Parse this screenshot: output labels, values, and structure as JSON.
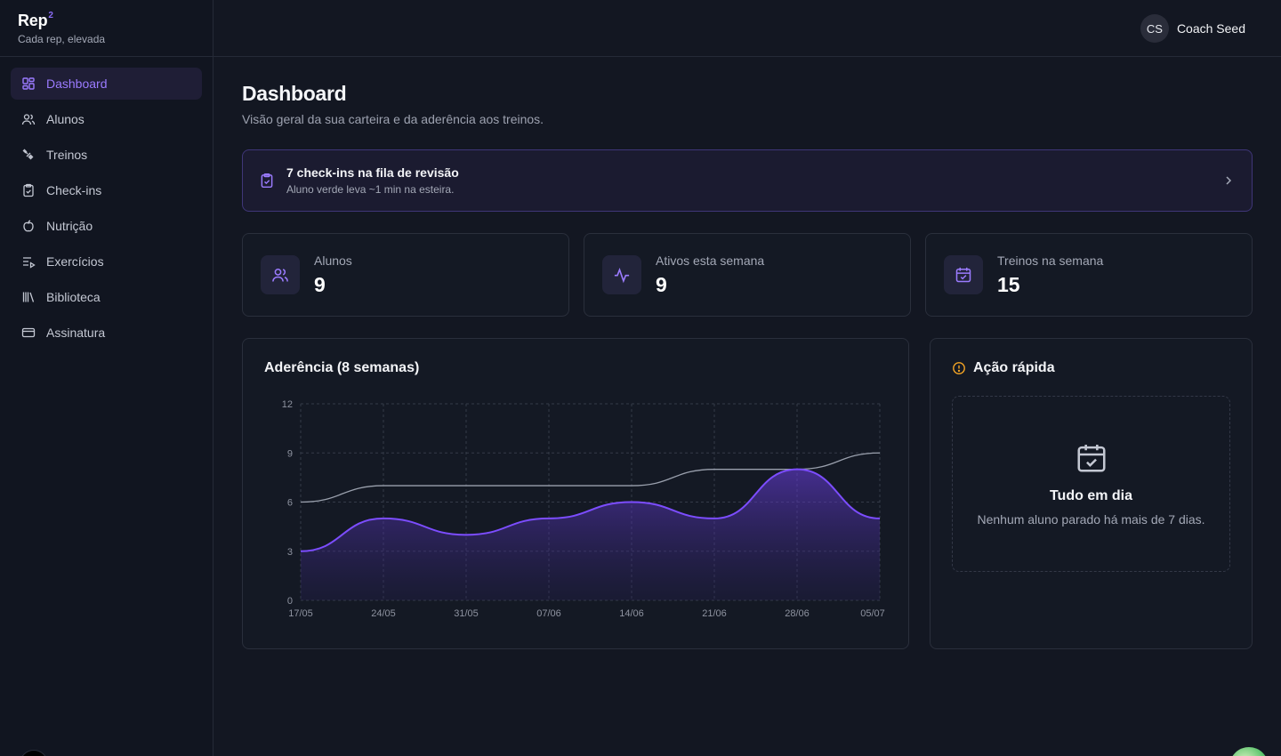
{
  "brand": {
    "name": "Rep",
    "superscript": "2",
    "tagline": "Cada rep, elevada"
  },
  "sidebar": {
    "items": [
      {
        "label": "Dashboard",
        "icon": "dashboard-icon",
        "active": true
      },
      {
        "label": "Alunos",
        "icon": "users-icon"
      },
      {
        "label": "Treinos",
        "icon": "workouts-icon"
      },
      {
        "label": "Check-ins",
        "icon": "clipboard-check-icon"
      },
      {
        "label": "Nutrição",
        "icon": "apple-icon"
      },
      {
        "label": "Exercícios",
        "icon": "list-play-icon"
      },
      {
        "label": "Biblioteca",
        "icon": "library-icon"
      },
      {
        "label": "Assinatura",
        "icon": "credit-card-icon"
      }
    ]
  },
  "header": {
    "user_initials": "CS",
    "user_name": "Coach Seed"
  },
  "page": {
    "title": "Dashboard",
    "subtitle": "Visão geral da sua carteira e da aderência aos treinos."
  },
  "alert": {
    "title": "7 check-ins na fila de revisão",
    "subtitle": "Aluno verde leva ~1 min na esteira."
  },
  "stats": [
    {
      "label": "Alunos",
      "value": "9",
      "icon": "users-icon"
    },
    {
      "label": "Ativos esta semana",
      "value": "9",
      "icon": "activity-icon"
    },
    {
      "label": "Treinos na semana",
      "value": "15",
      "icon": "calendar-check-icon"
    }
  ],
  "chart_data": {
    "type": "area",
    "title": "Aderência (8 semanas)",
    "categories": [
      "17/05",
      "24/05",
      "31/05",
      "07/06",
      "14/06",
      "21/06",
      "28/06",
      "05/07"
    ],
    "series": [
      {
        "values": [
          6,
          7,
          7,
          7,
          7,
          8,
          8,
          9
        ],
        "color": "#9aa0ad",
        "filled": false
      },
      {
        "values": [
          3,
          5,
          4,
          5,
          6,
          5,
          8,
          5
        ],
        "color": "#7c4dff",
        "filled": true
      }
    ],
    "ylim": [
      0,
      12
    ],
    "yticks": [
      0,
      3,
      6,
      9,
      12
    ],
    "grid": true
  },
  "quick": {
    "title": "Ação rápida",
    "empty_title": "Tudo em dia",
    "empty_sub": "Nenhum aluno parado há mais de 7 dias."
  },
  "colors": {
    "accent": "#8b6cf6",
    "warning": "#f5a524",
    "background": "#131722"
  }
}
